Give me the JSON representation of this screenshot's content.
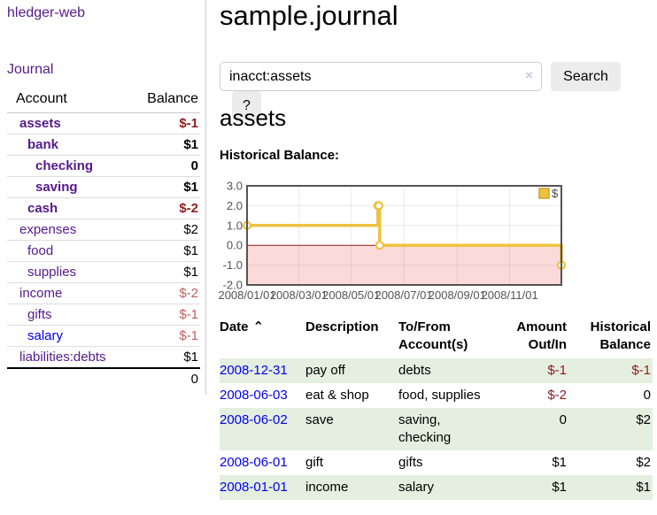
{
  "app": {
    "title": "hledger-web"
  },
  "sidebar": {
    "nav_journal": "Journal",
    "accounts": {
      "col_account": "Account",
      "col_balance": "Balance",
      "rows": [
        {
          "name": "assets",
          "depth": 1,
          "in_account": true,
          "balance": "$-1",
          "balance_class": "neg-strong",
          "link_state": "visited"
        },
        {
          "name": "bank",
          "depth": 2,
          "in_account": true,
          "balance": "$1",
          "balance_class": "plain",
          "link_state": "visited"
        },
        {
          "name": "checking",
          "depth": 3,
          "in_account": true,
          "balance": "0",
          "balance_class": "plain",
          "link_state": "visited"
        },
        {
          "name": "saving",
          "depth": 3,
          "in_account": true,
          "balance": "$1",
          "balance_class": "plain",
          "link_state": "visited"
        },
        {
          "name": "cash",
          "depth": 2,
          "in_account": true,
          "balance": "$-2",
          "balance_class": "neg-strong",
          "link_state": "visited"
        },
        {
          "name": "expenses",
          "depth": 1,
          "in_account": false,
          "balance": "$2",
          "balance_class": "plain",
          "link_state": "visited"
        },
        {
          "name": "food",
          "depth": 2,
          "in_account": false,
          "balance": "$1",
          "balance_class": "plain",
          "link_state": "visited"
        },
        {
          "name": "supplies",
          "depth": 2,
          "in_account": false,
          "balance": "$1",
          "balance_class": "plain",
          "link_state": "visited"
        },
        {
          "name": "income",
          "depth": 1,
          "in_account": false,
          "balance": "$-2",
          "balance_class": "neg-soft",
          "link_state": "visited"
        },
        {
          "name": "gifts",
          "depth": 2,
          "in_account": false,
          "balance": "$-1",
          "balance_class": "neg-soft",
          "link_state": "visited"
        },
        {
          "name": "salary",
          "depth": 2,
          "in_account": false,
          "balance": "$-1",
          "balance_class": "neg-soft",
          "link_state": "unvisited"
        },
        {
          "name": "liabilities:debts",
          "depth": 1,
          "in_account": false,
          "balance": "$1",
          "balance_class": "plain",
          "link_state": "visited"
        }
      ],
      "total": "0"
    }
  },
  "main": {
    "journal_title": "sample.journal",
    "search": {
      "value": "inacct:assets",
      "clear_icon": "×",
      "search_button": "Search",
      "help_button": "?"
    },
    "account_heading": "assets",
    "section_label": "Historical Balance:"
  },
  "chart_data": {
    "type": "line",
    "line_style": "step",
    "title": "Historical Balance:",
    "xlabel": "",
    "ylabel": "",
    "x_range": [
      "2008-01-01",
      "2008-12-31"
    ],
    "ylim": [
      -2,
      3
    ],
    "grid": true,
    "y_ticks": [
      "3.0",
      "2.0",
      "1.0",
      "0.0",
      "-1.0",
      "-2.0"
    ],
    "x_ticks": [
      {
        "label": "2008/01/01",
        "date": "2008-01-01"
      },
      {
        "label": "2008/03/01",
        "date": "2008-03-01"
      },
      {
        "label": "2008/05/01",
        "date": "2008-05-01"
      },
      {
        "label": "2008/07/01",
        "date": "2008-07-01"
      },
      {
        "label": "2008/09/01",
        "date": "2008-09-01"
      },
      {
        "label": "2008/11/01",
        "date": "2008-11-01"
      }
    ],
    "series": [
      {
        "name": "$",
        "color": "#EDC240",
        "marker": "open-circle",
        "points": [
          {
            "date": "2008-01-01",
            "value": 1
          },
          {
            "date": "2008-06-01",
            "value": 2
          },
          {
            "date": "2008-06-02",
            "value": 2
          },
          {
            "date": "2008-06-03",
            "value": 0
          },
          {
            "date": "2008-12-31",
            "value": -1
          }
        ]
      }
    ],
    "legend": {
      "label": "$",
      "position": "top-right"
    },
    "negative_fill": "#fbdada",
    "zero_line_color": "#8b1a1a",
    "border_color": "#545454",
    "tick_label_color": "#545454"
  },
  "register": {
    "headers": {
      "date": "Date",
      "sort_icon": "⌃",
      "description": "Description",
      "tofrom_line1": "To/From",
      "tofrom_line2": "Account(s)",
      "amount_line1": "Amount",
      "amount_line2": "Out/In",
      "balance_line1": "Historical",
      "balance_line2": "Balance"
    },
    "rows": [
      {
        "date": "2008-12-31",
        "description": "pay off",
        "accounts": "debts",
        "amount": "$-1",
        "amount_negative": true,
        "balance": "$-1",
        "balance_negative": true
      },
      {
        "date": "2008-06-03",
        "description": "eat & shop",
        "accounts": "food, supplies",
        "amount": "$-2",
        "amount_negative": true,
        "balance": "0",
        "balance_negative": false
      },
      {
        "date": "2008-06-02",
        "description": "save",
        "accounts": "saving, checking",
        "amount": "0",
        "amount_negative": false,
        "balance": "$2",
        "balance_negative": false
      },
      {
        "date": "2008-06-01",
        "description": "gift",
        "accounts": "gifts",
        "amount": "$1",
        "amount_negative": false,
        "balance": "$2",
        "balance_negative": false
      },
      {
        "date": "2008-01-01",
        "description": "income",
        "accounts": "salary",
        "amount": "$1",
        "amount_negative": false,
        "balance": "$1",
        "balance_negative": false
      }
    ]
  },
  "colors": {
    "link_visited": "#551A8B",
    "link_unvisited": "#0000EE",
    "negative_strong": "#8f1d21",
    "negative_soft": "#bf5f5f",
    "row_alt_green": "#e4efe0",
    "series_gold": "#EDC240"
  }
}
